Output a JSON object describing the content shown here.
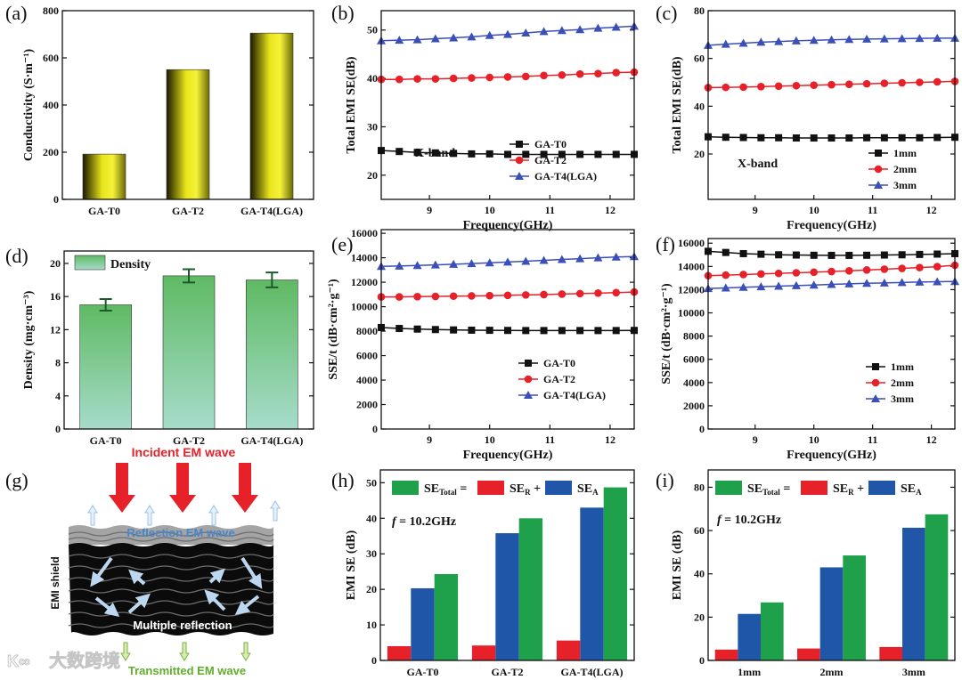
{
  "figure": {
    "panel_g": {
      "label": "(g)",
      "incident": "Incident EM wave",
      "reflection": "Reflection EM wave",
      "shield": "EMI shield",
      "multiple": "Multiple reflection",
      "transmitted": "Transmitted EM wave",
      "watermark": "大数跨境"
    }
  },
  "colors": {
    "black": "#111111",
    "red": "#e62129",
    "blue": "#3b4fb8",
    "green": "#1fa04a",
    "bar_blue": "#1f56a8",
    "yellow": "#f2ef1a"
  },
  "chart_data": [
    {
      "id": "a",
      "label": "(a)",
      "type": "bar",
      "ylabel": "Conductivity (S·m⁻¹)",
      "xlabel": "",
      "categories": [
        "GA-T0",
        "GA-T2",
        "GA-T4(LGA)"
      ],
      "values": [
        192,
        550,
        705
      ],
      "ylim": [
        0,
        800
      ],
      "yticks": [
        0,
        200,
        400,
        600,
        800
      ],
      "style": "yellow"
    },
    {
      "id": "b",
      "label": "(b)",
      "type": "line",
      "ylabel": "Total EMI SE(dB)",
      "xlabel": "Frequency(GHz)",
      "xlim": [
        8.2,
        12.4
      ],
      "xticks": [
        9,
        10,
        11,
        12
      ],
      "ylim": [
        15,
        54
      ],
      "yticks": [
        20,
        30,
        40,
        50
      ],
      "annotation": "X-band",
      "x": [
        8.2,
        8.5,
        8.8,
        9.1,
        9.4,
        9.7,
        10.0,
        10.3,
        10.6,
        10.9,
        11.2,
        11.5,
        11.8,
        12.1,
        12.4
      ],
      "series": [
        {
          "name": "GA-T0",
          "marker": "square",
          "color": "#111111",
          "values": [
            25.1,
            24.9,
            24.7,
            24.6,
            24.5,
            24.4,
            24.4,
            24.3,
            24.3,
            24.3,
            24.3,
            24.3,
            24.3,
            24.3,
            24.3
          ]
        },
        {
          "name": "GA-T2",
          "marker": "circle",
          "color": "#e62129",
          "values": [
            39.8,
            39.8,
            39.9,
            39.9,
            40.0,
            40.1,
            40.2,
            40.3,
            40.4,
            40.6,
            40.7,
            40.9,
            41.0,
            41.2,
            41.3
          ]
        },
        {
          "name": "GA-T4(LGA)",
          "marker": "triangle",
          "color": "#3b4fb8",
          "values": [
            47.8,
            47.9,
            48.0,
            48.2,
            48.4,
            48.6,
            48.9,
            49.1,
            49.4,
            49.7,
            49.9,
            50.1,
            50.4,
            50.6,
            50.8
          ]
        }
      ]
    },
    {
      "id": "c",
      "label": "(c)",
      "type": "line",
      "ylabel": "Total EMI SE(dB)",
      "xlabel": "Frequency(GHz)",
      "xlim": [
        8.2,
        12.4
      ],
      "xticks": [
        9,
        10,
        11,
        12
      ],
      "ylim": [
        1,
        80
      ],
      "yticks": [
        20,
        40,
        60,
        80
      ],
      "annotation": "X-band",
      "x": [
        8.2,
        8.5,
        8.8,
        9.1,
        9.4,
        9.7,
        10.0,
        10.3,
        10.6,
        10.9,
        11.2,
        11.5,
        11.8,
        12.1,
        12.4
      ],
      "series": [
        {
          "name": "1mm",
          "marker": "square",
          "color": "#111111",
          "values": [
            27.2,
            27.0,
            26.9,
            26.8,
            26.8,
            26.7,
            26.7,
            26.7,
            26.7,
            26.8,
            26.8,
            26.8,
            26.8,
            26.9,
            27.0
          ]
        },
        {
          "name": "2mm",
          "marker": "circle",
          "color": "#e62129",
          "values": [
            47.8,
            47.9,
            48.0,
            48.2,
            48.4,
            48.6,
            48.8,
            49.0,
            49.2,
            49.4,
            49.6,
            49.8,
            50.0,
            50.2,
            50.4
          ]
        },
        {
          "name": "3mm",
          "marker": "triangle",
          "color": "#3b4fb8",
          "values": [
            65.5,
            66.0,
            66.4,
            66.8,
            67.1,
            67.4,
            67.6,
            67.8,
            68.0,
            68.1,
            68.2,
            68.3,
            68.4,
            68.5,
            68.5
          ]
        }
      ]
    },
    {
      "id": "d",
      "label": "(d)",
      "type": "bar",
      "ylabel": "Density (mg·cm⁻³)",
      "xlabel": "",
      "categories": [
        "GA-T0",
        "GA-T2",
        "GA-T4(LGA)"
      ],
      "values": [
        15.0,
        18.5,
        18.0
      ],
      "errors": [
        0.7,
        0.8,
        0.9
      ],
      "ylim": [
        0,
        21.5
      ],
      "yticks": [
        0,
        4,
        8,
        12,
        16,
        20
      ],
      "style": "green",
      "legend": [
        "Density"
      ]
    },
    {
      "id": "e",
      "label": "(e)",
      "type": "line",
      "ylabel": "SSE/t (dB·cm²·g⁻¹)",
      "xlabel": "Frequency(GHz)",
      "xlim": [
        8.2,
        12.4
      ],
      "xticks": [
        9,
        10,
        11,
        12
      ],
      "ylim": [
        0,
        16300
      ],
      "yticks": [
        0,
        2000,
        4000,
        6000,
        8000,
        10000,
        12000,
        14000,
        16000
      ],
      "x": [
        8.2,
        8.5,
        8.8,
        9.1,
        9.4,
        9.7,
        10.0,
        10.3,
        10.6,
        10.9,
        11.2,
        11.5,
        11.8,
        12.1,
        12.4
      ],
      "series": [
        {
          "name": "GA-T0",
          "marker": "square",
          "color": "#111111",
          "values": [
            8300,
            8220,
            8170,
            8130,
            8100,
            8080,
            8070,
            8060,
            8050,
            8050,
            8050,
            8050,
            8050,
            8050,
            8060
          ]
        },
        {
          "name": "GA-T2",
          "marker": "circle",
          "color": "#e62129",
          "values": [
            10800,
            10800,
            10820,
            10840,
            10860,
            10880,
            10900,
            10930,
            10960,
            10990,
            11030,
            11070,
            11110,
            11150,
            11200
          ]
        },
        {
          "name": "GA-T4(LGA)",
          "marker": "triangle",
          "color": "#3b4fb8",
          "values": [
            13300,
            13330,
            13370,
            13420,
            13470,
            13530,
            13590,
            13650,
            13720,
            13790,
            13860,
            13930,
            14000,
            14060,
            14100
          ]
        }
      ]
    },
    {
      "id": "f",
      "label": "(f)",
      "type": "line",
      "ylabel": "SSE/t (dB·cm²·g⁻¹)",
      "xlabel": "Frequency(GHz)",
      "xlim": [
        8.2,
        12.4
      ],
      "xticks": [
        9,
        10,
        11,
        12
      ],
      "ylim": [
        0,
        16400
      ],
      "yticks": [
        0,
        2000,
        4000,
        6000,
        8000,
        10000,
        12000,
        14000,
        16000
      ],
      "x": [
        8.2,
        8.5,
        8.8,
        9.1,
        9.4,
        9.7,
        10.0,
        10.3,
        10.6,
        10.9,
        11.2,
        11.5,
        11.8,
        12.1,
        12.4
      ],
      "series": [
        {
          "name": "1mm",
          "marker": "square",
          "color": "#111111",
          "values": [
            15300,
            15200,
            15100,
            15050,
            15000,
            14980,
            14960,
            14950,
            14950,
            14960,
            14980,
            15000,
            15030,
            15060,
            15100
          ]
        },
        {
          "name": "2mm",
          "marker": "circle",
          "color": "#e62129",
          "values": [
            13200,
            13250,
            13300,
            13350,
            13400,
            13450,
            13500,
            13560,
            13620,
            13690,
            13760,
            13830,
            13900,
            13980,
            14100
          ]
        },
        {
          "name": "3mm",
          "marker": "triangle",
          "color": "#3b4fb8",
          "values": [
            12100,
            12150,
            12200,
            12250,
            12300,
            12350,
            12400,
            12450,
            12500,
            12550,
            12580,
            12620,
            12650,
            12680,
            12700
          ]
        }
      ]
    },
    {
      "id": "h",
      "label": "(h)",
      "type": "grouped_bar",
      "ylabel": "EMI SE (dB)",
      "xlabel": "",
      "annotation": "f = 10.2GHz",
      "categories": [
        "GA-T0",
        "GA-T2",
        "GA-T4(LGA)"
      ],
      "ylim": [
        0,
        53.6
      ],
      "yticks": [
        0,
        10,
        20,
        30,
        40,
        50
      ],
      "legend": [
        {
          "main": "SE",
          "sub": "Total",
          "suffix": " ="
        },
        {
          "main": "SE",
          "sub": "R",
          "suffix": " +"
        },
        {
          "main": "SE",
          "sub": "A",
          "suffix": ""
        }
      ],
      "series": [
        {
          "name": "SE_R",
          "color": "#e62129",
          "values": [
            4.0,
            4.2,
            5.6
          ]
        },
        {
          "name": "SE_A",
          "color": "#1f56a8",
          "values": [
            20.3,
            35.8,
            43.0
          ]
        },
        {
          "name": "SE_Total",
          "color": "#1fa04a",
          "values": [
            24.3,
            40.0,
            48.7
          ]
        }
      ]
    },
    {
      "id": "i",
      "label": "(i)",
      "type": "grouped_bar",
      "ylabel": "EMI SE (dB)",
      "xlabel": "",
      "annotation": "f = 10.2GHz",
      "categories": [
        "1mm",
        "2mm",
        "3mm"
      ],
      "ylim": [
        0,
        88
      ],
      "yticks": [
        0,
        20,
        40,
        60,
        80
      ],
      "legend": [
        {
          "main": "SE",
          "sub": "Total",
          "suffix": " ="
        },
        {
          "main": "SE",
          "sub": "R",
          "suffix": " +"
        },
        {
          "main": "SE",
          "sub": "A",
          "suffix": ""
        }
      ],
      "series": [
        {
          "name": "SE_R",
          "color": "#e62129",
          "values": [
            5.0,
            5.5,
            6.2
          ]
        },
        {
          "name": "SE_A",
          "color": "#1f56a8",
          "values": [
            21.5,
            43.0,
            61.3
          ]
        },
        {
          "name": "SE_Total",
          "color": "#1fa04a",
          "values": [
            26.8,
            48.5,
            67.5
          ]
        }
      ]
    }
  ]
}
